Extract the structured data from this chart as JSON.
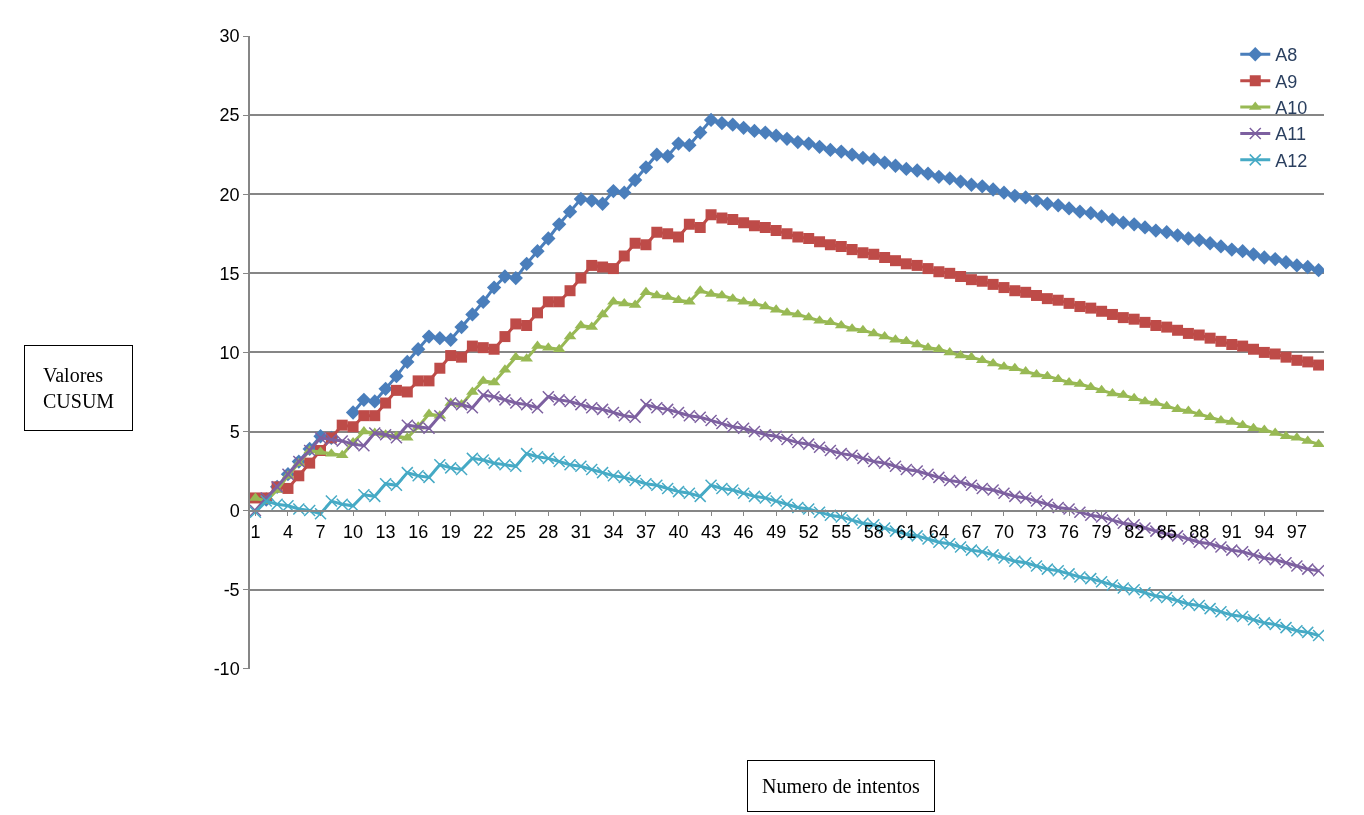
{
  "chart_data": {
    "type": "line",
    "xlabel": "Numero de intentos",
    "ylabel": "Valores\nCUSUM",
    "categories": [
      "1",
      null,
      null,
      "4",
      null,
      null,
      "7",
      null,
      null,
      "10",
      null,
      null,
      "13",
      null,
      null,
      "16",
      null,
      null,
      "19",
      null,
      null,
      "22",
      null,
      null,
      "25",
      null,
      null,
      "28",
      null,
      null,
      "31",
      null,
      null,
      "34",
      null,
      null,
      "37",
      null,
      null,
      "40",
      null,
      null,
      "43",
      null,
      null,
      "46",
      null,
      null,
      "49",
      null,
      null,
      "52",
      null,
      null,
      "55",
      null,
      null,
      "58",
      null,
      null,
      "61",
      null,
      null,
      "64",
      null,
      null,
      "67",
      null,
      null,
      "70",
      null,
      null,
      "73",
      null,
      null,
      "76",
      null,
      null,
      "79",
      null,
      null,
      "82",
      null,
      null,
      "85",
      null,
      null,
      "88",
      null,
      null,
      "91",
      null,
      null,
      "94",
      null,
      null,
      "97",
      null,
      null
    ],
    "ylim": [
      -10,
      30
    ],
    "yticks": [
      -10,
      -5,
      0,
      5,
      10,
      15,
      20,
      25,
      30
    ],
    "grid": "y",
    "legend": "top right",
    "series": [
      {
        "name": "A8",
        "color": "#4a7ebb",
        "marker": "diamond",
        "values": [
          null,
          0.7,
          1.5,
          2.3,
          3.1,
          3.9,
          4.7,
          4.6,
          null,
          6.2,
          7.0,
          6.9,
          7.7,
          8.5,
          9.4,
          10.2,
          11.0,
          10.9,
          10.8,
          11.6,
          12.4,
          13.2,
          14.1,
          14.8,
          14.7,
          15.6,
          16.4,
          17.2,
          18.1,
          18.9,
          19.7,
          19.6,
          19.4,
          20.2,
          20.1,
          20.9,
          21.7,
          22.5,
          22.4,
          23.2,
          23.1,
          23.9,
          24.7,
          24.5,
          24.4,
          24.2,
          24.0,
          23.9,
          23.7,
          23.5,
          23.3,
          23.2,
          23.0,
          22.8,
          22.7,
          22.5,
          22.3,
          22.2,
          22.0,
          21.8,
          21.6,
          21.5,
          21.3,
          21.1,
          21.0,
          20.8,
          20.6,
          20.5,
          20.3,
          20.1,
          19.9,
          19.8,
          19.6,
          19.4,
          19.3,
          19.1,
          18.9,
          18.8,
          18.6,
          18.4,
          18.2,
          18.1,
          17.9,
          17.7,
          17.6,
          17.4,
          17.2,
          17.1,
          16.9,
          16.7,
          16.5,
          16.4,
          16.2,
          16.0,
          15.9,
          15.7,
          15.5,
          15.4,
          15.2
        ]
      },
      {
        "name": "A9",
        "color": "#be4b48",
        "marker": "square",
        "values": [
          0.8,
          0.8,
          1.5,
          1.4,
          2.2,
          3.0,
          3.8,
          4.6,
          5.4,
          5.3,
          6.0,
          6.0,
          6.8,
          7.6,
          7.5,
          8.2,
          8.2,
          9.0,
          9.8,
          9.7,
          10.4,
          10.3,
          10.2,
          11.0,
          11.8,
          11.7,
          12.5,
          13.2,
          13.2,
          13.9,
          14.7,
          15.5,
          15.4,
          15.3,
          16.1,
          16.9,
          16.8,
          17.6,
          17.5,
          17.3,
          18.1,
          17.9,
          18.7,
          18.5,
          18.4,
          18.2,
          18.0,
          17.9,
          17.7,
          17.5,
          17.3,
          17.2,
          17.0,
          16.8,
          16.7,
          16.5,
          16.3,
          16.2,
          16.0,
          15.8,
          15.6,
          15.5,
          15.3,
          15.1,
          15.0,
          14.8,
          14.6,
          14.5,
          14.3,
          14.1,
          13.9,
          13.8,
          13.6,
          13.4,
          13.3,
          13.1,
          12.9,
          12.8,
          12.6,
          12.4,
          12.2,
          12.1,
          11.9,
          11.7,
          11.6,
          11.4,
          11.2,
          11.1,
          10.9,
          10.7,
          10.5,
          10.4,
          10.2,
          10.0,
          9.9,
          9.7,
          9.5,
          9.4,
          9.2
        ]
      },
      {
        "name": "A10",
        "color": "#98b954",
        "marker": "triangle",
        "values": [
          0.8,
          0.6,
          1.3,
          2.2,
          3.0,
          3.8,
          3.7,
          3.6,
          3.5,
          4.3,
          5.0,
          4.9,
          4.8,
          4.7,
          4.6,
          5.3,
          6.1,
          6.0,
          6.8,
          6.7,
          7.5,
          8.2,
          8.1,
          8.9,
          9.7,
          9.6,
          10.4,
          10.3,
          10.2,
          11.0,
          11.7,
          11.6,
          12.4,
          13.2,
          13.1,
          13.0,
          13.8,
          13.6,
          13.5,
          13.3,
          13.2,
          13.9,
          13.7,
          13.6,
          13.4,
          13.2,
          13.1,
          12.9,
          12.7,
          12.5,
          12.4,
          12.2,
          12.0,
          11.9,
          11.7,
          11.5,
          11.4,
          11.2,
          11.0,
          10.8,
          10.7,
          10.5,
          10.3,
          10.2,
          10.0,
          9.8,
          9.7,
          9.5,
          9.3,
          9.1,
          9.0,
          8.8,
          8.6,
          8.5,
          8.3,
          8.1,
          8.0,
          7.8,
          7.6,
          7.4,
          7.3,
          7.1,
          6.9,
          6.8,
          6.6,
          6.4,
          6.3,
          6.1,
          5.9,
          5.7,
          5.6,
          5.4,
          5.2,
          5.1,
          4.9,
          4.7,
          4.6,
          4.4,
          4.2
        ]
      },
      {
        "name": "A11",
        "color": "#7d60a0",
        "marker": "cross",
        "values": [
          0.0,
          0.8,
          1.5,
          2.3,
          3.1,
          3.8,
          4.6,
          4.5,
          4.4,
          4.2,
          4.1,
          4.9,
          4.8,
          4.6,
          5.4,
          5.3,
          5.2,
          6.0,
          6.8,
          6.7,
          6.5,
          7.3,
          7.2,
          7.0,
          6.8,
          6.7,
          6.5,
          7.2,
          7.0,
          6.9,
          6.7,
          6.5,
          6.4,
          6.2,
          6.0,
          5.9,
          6.7,
          6.5,
          6.4,
          6.2,
          6.0,
          5.9,
          5.7,
          5.5,
          5.3,
          5.2,
          5.0,
          4.8,
          4.7,
          4.5,
          4.3,
          4.2,
          4.0,
          3.8,
          3.6,
          3.5,
          3.3,
          3.1,
          3.0,
          2.8,
          2.6,
          2.5,
          2.3,
          2.1,
          1.9,
          1.8,
          1.6,
          1.4,
          1.3,
          1.1,
          0.9,
          0.8,
          0.6,
          0.4,
          0.2,
          0.1,
          -0.1,
          -0.3,
          -0.4,
          -0.6,
          -0.8,
          -0.9,
          -1.1,
          -1.3,
          -1.5,
          -1.6,
          -1.8,
          -2.0,
          -2.1,
          -2.3,
          -2.5,
          -2.6,
          -2.8,
          -3.0,
          -3.1,
          -3.3,
          -3.5,
          -3.7,
          -3.8
        ]
      },
      {
        "name": "A12",
        "color": "#46aac5",
        "marker": "cross",
        "values": [
          -0.1,
          0.6,
          0.4,
          0.3,
          0.1,
          0.0,
          -0.2,
          0.6,
          0.4,
          0.3,
          1.0,
          0.9,
          1.7,
          1.6,
          2.4,
          2.2,
          2.1,
          2.9,
          2.7,
          2.6,
          3.3,
          3.2,
          3.0,
          2.9,
          2.8,
          3.6,
          3.4,
          3.3,
          3.1,
          2.9,
          2.8,
          2.6,
          2.4,
          2.2,
          2.1,
          1.9,
          1.7,
          1.6,
          1.4,
          1.2,
          1.1,
          0.9,
          1.6,
          1.4,
          1.3,
          1.1,
          0.9,
          0.8,
          0.6,
          0.4,
          0.2,
          0.1,
          -0.1,
          -0.3,
          -0.4,
          -0.6,
          -0.8,
          -0.9,
          -1.1,
          -1.3,
          -1.5,
          -1.6,
          -1.8,
          -2.0,
          -2.1,
          -2.3,
          -2.5,
          -2.6,
          -2.8,
          -3.0,
          -3.2,
          -3.3,
          -3.5,
          -3.7,
          -3.8,
          -4.0,
          -4.2,
          -4.3,
          -4.5,
          -4.7,
          -4.9,
          -5.0,
          -5.2,
          -5.4,
          -5.5,
          -5.7,
          -5.9,
          -6.0,
          -6.2,
          -6.4,
          -6.6,
          -6.7,
          -6.9,
          -7.1,
          -7.2,
          -7.4,
          -7.6,
          -7.7,
          -7.9
        ]
      }
    ]
  }
}
